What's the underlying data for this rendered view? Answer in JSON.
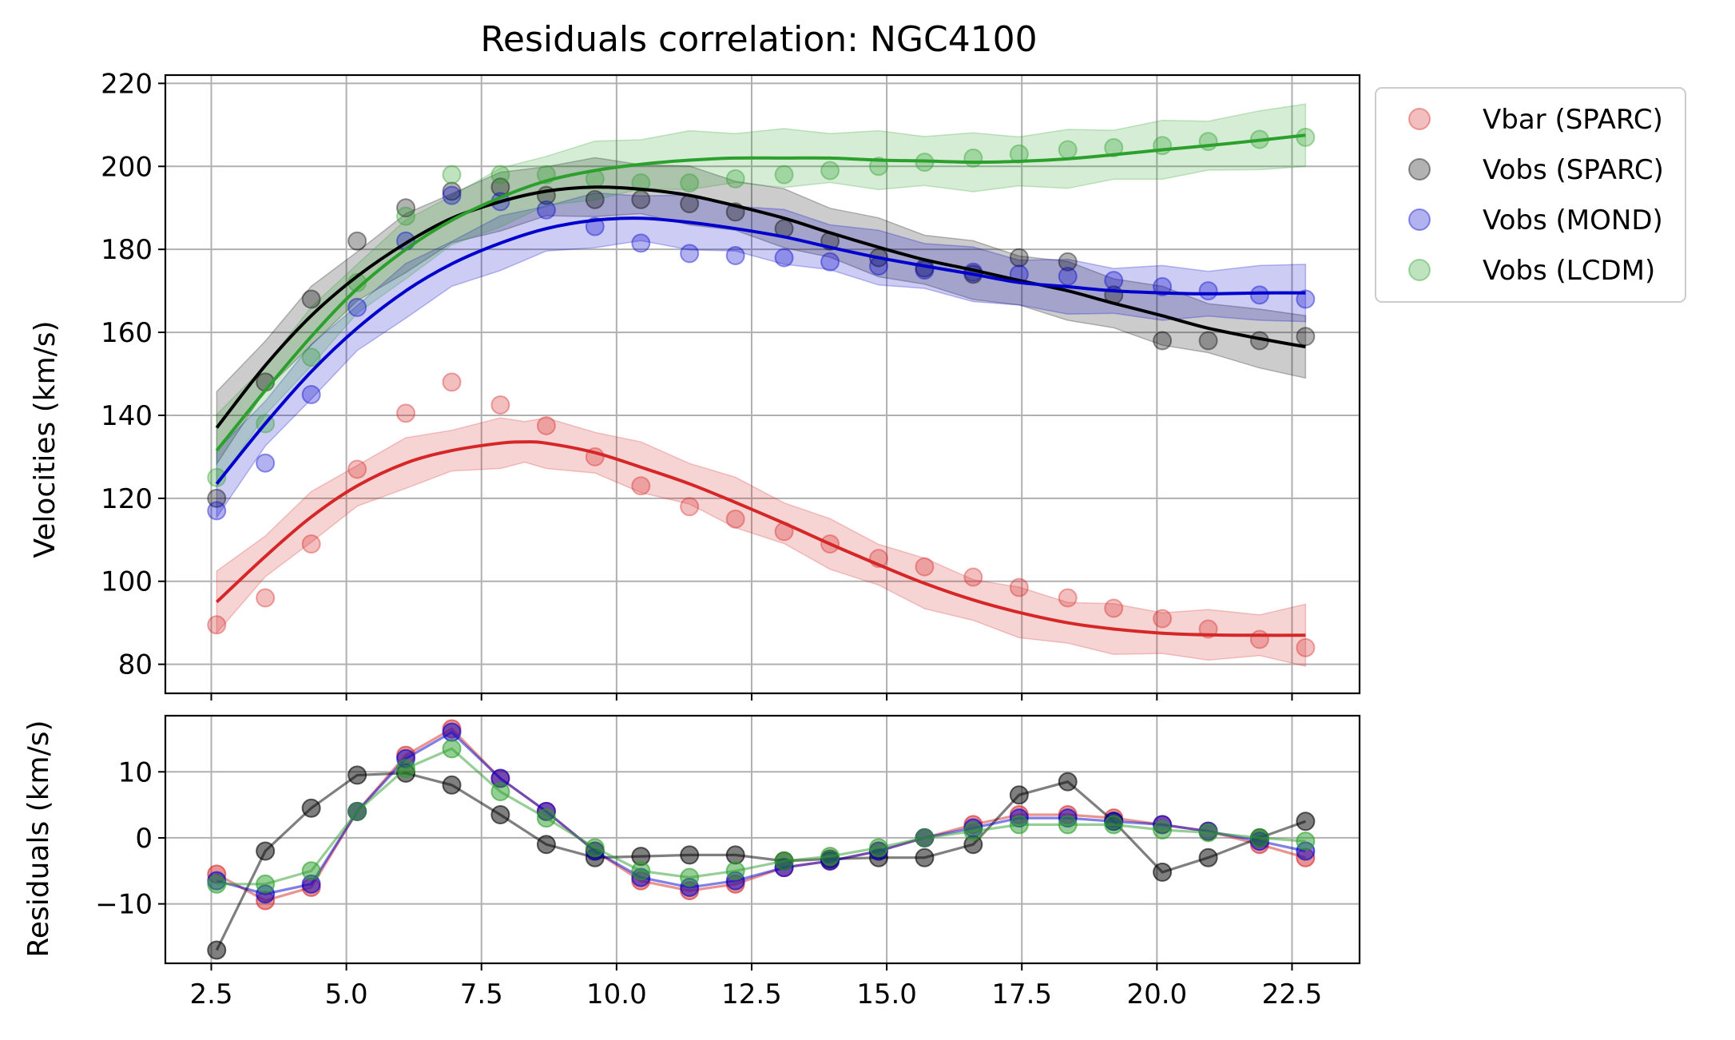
{
  "figure": {
    "title": "Residuals correlation: NGC4100"
  },
  "chart_data": [
    {
      "type": "scatter",
      "panel": "main",
      "title": "Residuals correlation: NGC4100",
      "xlabel": "",
      "ylabel": "Velocities (km/s)",
      "xlim": [
        1.65,
        23.75
      ],
      "ylim": [
        73,
        222
      ],
      "grid": true,
      "legend_placement": "outside-top-right",
      "y_ticks": [
        80,
        100,
        120,
        140,
        160,
        180,
        200,
        220
      ],
      "x": [
        2.6,
        3.5,
        4.35,
        5.2,
        6.1,
        6.95,
        7.85,
        8.7,
        9.6,
        10.45,
        11.35,
        12.2,
        13.1,
        13.95,
        14.85,
        15.7,
        16.6,
        17.45,
        18.35,
        19.2,
        20.1,
        20.95,
        21.9,
        22.75
      ],
      "series": [
        {
          "name": "Vbar (SPARC)",
          "color": "#d62728",
          "values": [
            89.5,
            96,
            109,
            127,
            140.5,
            148,
            142.5,
            137.5,
            130,
            123,
            118,
            115,
            112,
            109,
            105.5,
            103.5,
            101,
            98.5,
            96,
            93.5,
            91,
            88.5,
            86,
            84
          ],
          "fit": [
            [
              2.6,
              95
            ],
            [
              3.5,
              106
            ],
            [
              4.35,
              115.5
            ],
            [
              5.2,
              123
            ],
            [
              6.1,
              128.5
            ],
            [
              6.95,
              131.5
            ],
            [
              7.85,
              133.3
            ],
            [
              8.3,
              133.6
            ],
            [
              8.7,
              133.3
            ],
            [
              9.6,
              131
            ],
            [
              10.45,
              127.5
            ],
            [
              11.35,
              123.5
            ],
            [
              12.2,
              119
            ],
            [
              13.1,
              114
            ],
            [
              13.95,
              109
            ],
            [
              14.85,
              104
            ],
            [
              15.7,
              99.5
            ],
            [
              16.6,
              95.5
            ],
            [
              17.45,
              92.5
            ],
            [
              18.35,
              90
            ],
            [
              19.2,
              88.5
            ],
            [
              20.1,
              87.5
            ],
            [
              20.95,
              87.1
            ],
            [
              21.9,
              87
            ],
            [
              22.75,
              87
            ]
          ],
          "band": 5.5
        },
        {
          "name": "Vobs (SPARC)",
          "color": "#000000",
          "values": [
            120,
            148,
            168,
            182,
            190,
            194,
            195,
            193,
            192,
            192,
            191,
            189,
            185,
            182,
            178,
            175.5,
            174,
            178,
            177,
            169,
            158,
            158,
            158,
            159
          ],
          "fit": [
            [
              2.6,
              137
            ],
            [
              3.5,
              152
            ],
            [
              4.35,
              164
            ],
            [
              5.2,
              173.5
            ],
            [
              6.1,
              181.5
            ],
            [
              6.95,
              187.5
            ],
            [
              7.85,
              191.5
            ],
            [
              8.7,
              194
            ],
            [
              9.6,
              195
            ],
            [
              10.45,
              194.5
            ],
            [
              11.35,
              193
            ],
            [
              12.2,
              190.5
            ],
            [
              13.1,
              187.5
            ],
            [
              13.95,
              184
            ],
            [
              14.85,
              180.5
            ],
            [
              15.7,
              177.5
            ],
            [
              16.6,
              175
            ],
            [
              17.45,
              172.5
            ],
            [
              18.35,
              170
            ],
            [
              19.2,
              167
            ],
            [
              20.1,
              164
            ],
            [
              20.95,
              161
            ],
            [
              21.9,
              158.5
            ],
            [
              22.75,
              156.5
            ]
          ],
          "band": 6.5
        },
        {
          "name": "Vobs (MOND)",
          "color": "#0000cc",
          "values": [
            117,
            128.5,
            145,
            166,
            182,
            193,
            191.5,
            189.5,
            185.5,
            181.5,
            179,
            178.5,
            178,
            177,
            176,
            175,
            174.5,
            174,
            173.5,
            172.5,
            171,
            170,
            169,
            168
          ],
          "fit": [
            [
              2.6,
              123.5
            ],
            [
              3.5,
              138
            ],
            [
              4.35,
              150.5
            ],
            [
              5.2,
              161
            ],
            [
              6.1,
              170
            ],
            [
              6.95,
              176.5
            ],
            [
              7.85,
              181.5
            ],
            [
              8.7,
              185
            ],
            [
              9.6,
              187
            ],
            [
              10.45,
              187.5
            ],
            [
              11.35,
              186.5
            ],
            [
              12.2,
              185
            ],
            [
              13.1,
              183
            ],
            [
              13.95,
              180.5
            ],
            [
              14.85,
              178
            ],
            [
              15.7,
              176
            ],
            [
              16.6,
              174
            ],
            [
              17.45,
              172
            ],
            [
              18.35,
              171
            ],
            [
              19.2,
              170
            ],
            [
              20.1,
              169.5
            ],
            [
              20.95,
              169.3
            ],
            [
              21.9,
              169.5
            ],
            [
              22.75,
              169.5
            ]
          ],
          "band": 6
        },
        {
          "name": "Vobs (LCDM)",
          "color": "#2ca02c",
          "values": [
            125,
            138,
            154,
            172,
            188,
            198,
            198,
            198,
            197,
            196,
            196,
            197,
            198,
            199,
            200,
            201,
            202,
            203,
            204,
            204.5,
            205,
            206,
            206.5,
            207
          ],
          "fit": [
            [
              2.6,
              131.5
            ],
            [
              3.5,
              146
            ],
            [
              4.35,
              159
            ],
            [
              5.2,
              170.5
            ],
            [
              6.1,
              180
            ],
            [
              6.95,
              187
            ],
            [
              7.85,
              192.5
            ],
            [
              8.7,
              196.5
            ],
            [
              9.6,
              199
            ],
            [
              10.45,
              200.5
            ],
            [
              11.35,
              201.5
            ],
            [
              12.2,
              202
            ],
            [
              13.1,
              202
            ],
            [
              13.95,
              202
            ],
            [
              14.85,
              201.5
            ],
            [
              15.7,
              201.3
            ],
            [
              16.6,
              201
            ],
            [
              17.45,
              201.2
            ],
            [
              18.35,
              201.8
            ],
            [
              19.2,
              202.8
            ],
            [
              20.1,
              204
            ],
            [
              20.95,
              205
            ],
            [
              21.9,
              206.3
            ],
            [
              22.75,
              207.5
            ]
          ],
          "band": 6.5
        }
      ]
    },
    {
      "type": "line",
      "panel": "residuals",
      "xlabel": "",
      "ylabel": "Residuals (km/s)",
      "xlim": [
        1.65,
        23.75
      ],
      "ylim": [
        -19,
        18.5
      ],
      "grid": true,
      "y_ticks": [
        -10,
        0,
        10
      ],
      "y_tick_labels": [
        "−10",
        "0",
        "10"
      ],
      "x_ticks": [
        2.5,
        5.0,
        7.5,
        10.0,
        12.5,
        15.0,
        17.5,
        20.0,
        22.5
      ],
      "x_tick_labels": [
        "2.5",
        "5.0",
        "7.5",
        "10.0",
        "12.5",
        "15.0",
        "17.5",
        "20.0",
        "22.5"
      ],
      "x": [
        2.6,
        3.5,
        4.35,
        5.2,
        6.1,
        6.95,
        7.85,
        8.7,
        9.6,
        10.45,
        11.35,
        12.2,
        13.1,
        13.95,
        14.85,
        15.7,
        16.6,
        17.45,
        18.35,
        19.2,
        20.1,
        20.95,
        21.9,
        22.75
      ],
      "series": [
        {
          "name": "Vbar (SPARC)",
          "color": "#d62728",
          "values": [
            -5.5,
            -9.5,
            -7.5,
            4,
            12.5,
            16.5,
            9,
            4,
            -2,
            -6.5,
            -8,
            -7,
            -4.5,
            -3.5,
            -2,
            0,
            2,
            3.5,
            3.5,
            3,
            2,
            1,
            -1,
            -3
          ]
        },
        {
          "name": "Vobs (SPARC)",
          "color": "#000000",
          "values": [
            -17,
            -2,
            4.5,
            9.5,
            9.8,
            8,
            3.5,
            -1,
            -3,
            -2.8,
            -2.6,
            -2.6,
            -3.5,
            -3.2,
            -3,
            -3,
            -1,
            6.5,
            8.5,
            2.5,
            -5.2,
            -3,
            0,
            2.5
          ]
        },
        {
          "name": "Vobs (MOND)",
          "color": "#0000cc",
          "values": [
            -6.5,
            -8.5,
            -7,
            4,
            12,
            16,
            9,
            4,
            -2,
            -6,
            -7.5,
            -6.5,
            -4.5,
            -3.5,
            -2,
            0,
            1.5,
            3,
            3,
            2.5,
            2,
            1,
            -0.5,
            -2
          ]
        },
        {
          "name": "Vobs (LCDM)",
          "color": "#2ca02c",
          "values": [
            -7,
            -7,
            -5,
            4,
            10.5,
            13.5,
            7,
            3,
            -1.5,
            -5,
            -6,
            -5,
            -3.5,
            -2.8,
            -1.5,
            0,
            1,
            2,
            2,
            2,
            1.2,
            0.8,
            0,
            -0.5
          ]
        }
      ]
    }
  ]
}
